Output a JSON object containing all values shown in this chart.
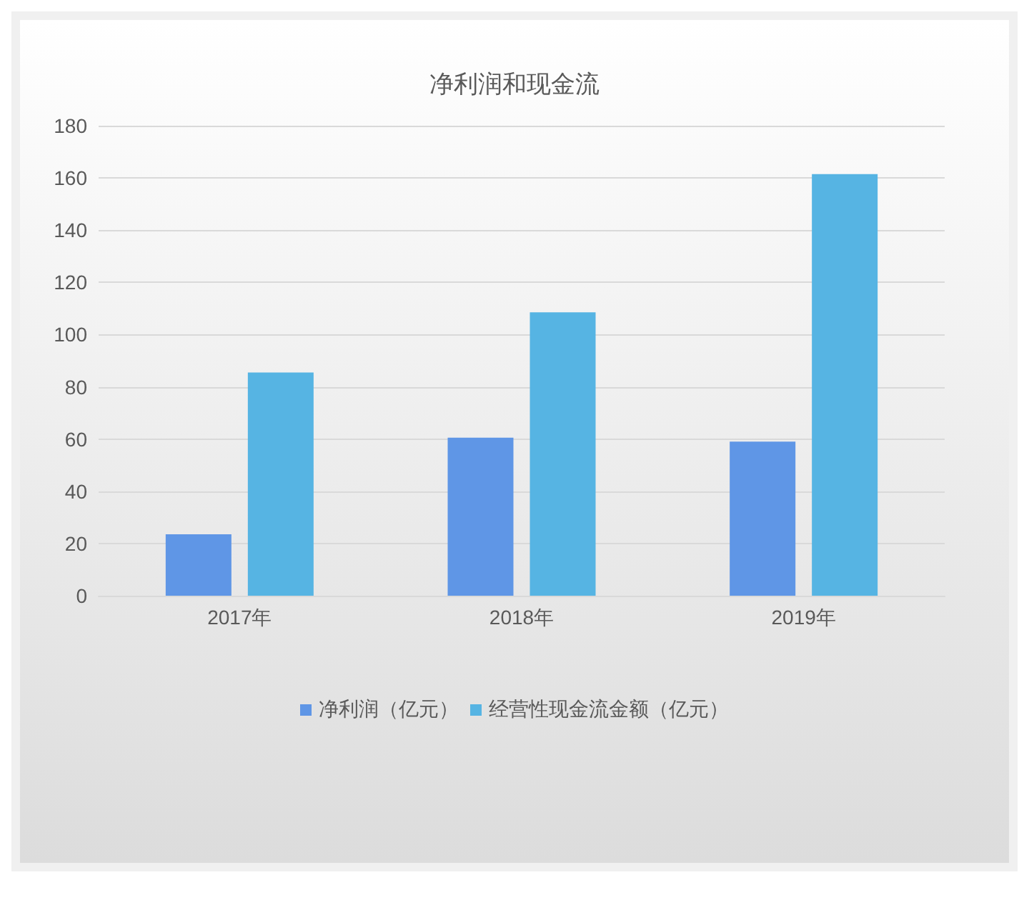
{
  "chart_data": {
    "type": "bar",
    "title": "净利润和现金流",
    "categories": [
      "2017年",
      "2018年",
      "2019年"
    ],
    "series": [
      {
        "name": "净利润（亿元）",
        "color": "#5f96e6",
        "values": [
          23.5,
          60.5,
          59
        ]
      },
      {
        "name": "经营性现金流金额（亿元）",
        "color": "#56b4e3",
        "values": [
          85.5,
          108.5,
          161.5
        ]
      }
    ],
    "ylim": [
      0,
      180
    ],
    "yticks": [
      0,
      20,
      40,
      60,
      80,
      100,
      120,
      140,
      160,
      180
    ],
    "grid": "y",
    "legend": "bottom"
  }
}
